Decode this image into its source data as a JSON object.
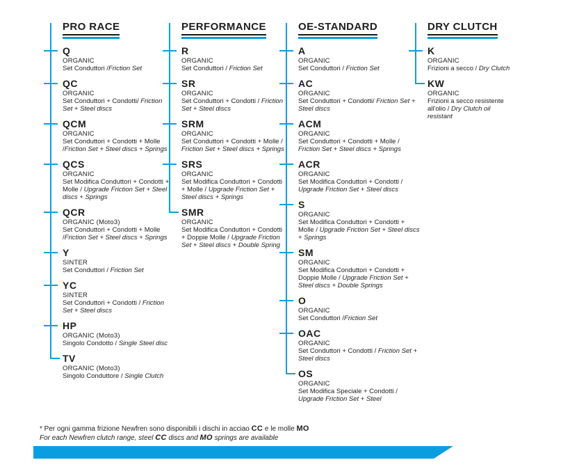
{
  "colors": {
    "accent": "#0a9ee0",
    "text": "#1e1e1e"
  },
  "columns": [
    {
      "name": "PRO RACE",
      "entries": [
        {
          "code": "Q",
          "material": "ORGANIC",
          "desc_it": "Set Conduttori /",
          "desc_en": "Friction Set"
        },
        {
          "code": "QC",
          "material": "ORGANIC",
          "desc_it": "Set Conduttori + Condotti/ ",
          "desc_en": "Friction Set + Steel discs"
        },
        {
          "code": "QCM",
          "material": "ORGANIC",
          "desc_it": "Set Conduttori + Condotti + Molle /",
          "desc_en": "Friction Set + Steel discs + Springs"
        },
        {
          "code": "QCS",
          "material": "ORGANIC",
          "desc_it": "Set Modifica Conduttori + Condotti + Molle / ",
          "desc_en": "Upgrade Friction Set + Steel discs + Springs"
        },
        {
          "code": "QCR",
          "material": "ORGANIC (Moto3)",
          "desc_it": "Set Conduttori + Condotti + Molle /",
          "desc_en": "Friction Set + Steel discs + Springs"
        },
        {
          "code": "Y",
          "material": "SINTER",
          "desc_it": "Set Conduttori  / ",
          "desc_en": "Friction Set"
        },
        {
          "code": "YC",
          "material": "SINTER",
          "desc_it": "Set Conduttori + Condotti / ",
          "desc_en": "Friction Set + Steel discs"
        },
        {
          "code": "HP",
          "material": "ORGANIC (Moto3)",
          "desc_it": "Singolo Condotto / ",
          "desc_en": "Single Steel disc"
        },
        {
          "code": "TV",
          "material": "ORGANIC (Moto3)",
          "desc_it": "Singolo Conduttore / ",
          "desc_en": "Single Clutch"
        }
      ]
    },
    {
      "name": "PERFORMANCE",
      "entries": [
        {
          "code": "R",
          "material": "ORGANIC",
          "desc_it": "Set Conduttori / ",
          "desc_en": "Friction Set"
        },
        {
          "code": "SR",
          "material": "ORGANIC",
          "desc_it": "Set Conduttori + Condotti / ",
          "desc_en": "Friction Set + Steel discs"
        },
        {
          "code": "SRM",
          "material": "ORGANIC",
          "desc_it": "Set Conduttori + Condotti + Molle / ",
          "desc_en": "Friction Set + Steel discs + Springs"
        },
        {
          "code": "SRS",
          "material": "ORGANIC",
          "desc_it": "Set Modifica Conduttori + Condotti + Molle / ",
          "desc_en": "Upgrade Friction Set + Steel discs + Springs"
        },
        {
          "code": "SMR",
          "material": "ORGANIC",
          "desc_it": "Set Modifica Conduttori + Condotti + Doppie Molle / ",
          "desc_en": "Upgrade Friction Set + Steel discs + Double Spring"
        }
      ]
    },
    {
      "name": "OE-STANDARD",
      "entries": [
        {
          "code": "A",
          "material": "ORGANIC",
          "desc_it": "Set Conduttori  / ",
          "desc_en": "Friction Set"
        },
        {
          "code": "AC",
          "material": "ORGANIC",
          "desc_it": "Set Conduttori + Condotti/ ",
          "desc_en": "Friction Set + Steel discs"
        },
        {
          "code": "ACM",
          "material": "ORGANIC",
          "desc_it": "Set Conduttori + Condotti + Molle / ",
          "desc_en": "Friction Set + Steel discs + Springs"
        },
        {
          "code": "ACR",
          "material": "ORGANIC",
          "desc_it": "Set Modifica Conduttori + Condotti / ",
          "desc_en": "Upgrade Friction Set + Steel discs"
        },
        {
          "code": "S",
          "material": "ORGANIC",
          "desc_it": "Set Modifica Conduttori + Condotti + Molle / ",
          "desc_en": "Upgrade Friction Set + Steel discs + Springs"
        },
        {
          "code": "SM",
          "material": "ORGANIC",
          "desc_it": "Set Modifica Conduttori + Condotti + Doppie Molle / ",
          "desc_en": "Upgrade Friction Set + Steel discs + Double Springs"
        },
        {
          "code": "O",
          "material": "ORGANIC",
          "desc_it": "Set Conduttori /",
          "desc_en": "Friction Set"
        },
        {
          "code": "OAC",
          "material": "ORGANIC",
          "desc_it": "Set Conduttori + Condotti / ",
          "desc_en": "Friction Set + Steel discs"
        },
        {
          "code": "OS",
          "material": "ORGANIC",
          "desc_it": "Set Modifica Speciale + Condotti / ",
          "desc_en": "Upgrade Friction Set + Steel"
        }
      ]
    },
    {
      "name": "DRY CLUTCH",
      "entries": [
        {
          "code": "K",
          "material": "ORGANIC",
          "desc_it": "Frizioni a secco / ",
          "desc_en": "Dry Clutch"
        },
        {
          "code": "KW",
          "material": "ORGANIC",
          "desc_it": "Frizioni a secco resistente all'olio  / ",
          "desc_en": "Dry Clutch oil resistant"
        }
      ]
    }
  ],
  "footer": {
    "note_it": [
      {
        "t": "* Per ogni gamma frizione Newfren sono disponibili i dischi in acciao ",
        "b": false
      },
      {
        "t": "CC",
        "b": true
      },
      {
        "t": " e le molle ",
        "b": false
      },
      {
        "t": "MO",
        "b": true
      }
    ],
    "note_en": [
      {
        "t": "For each Newfren clutch range, steel ",
        "b": false
      },
      {
        "t": "CC",
        "b": true
      },
      {
        "t": " discs and ",
        "b": false
      },
      {
        "t": "MO",
        "b": true
      },
      {
        "t": " springs are available",
        "b": false
      }
    ]
  }
}
